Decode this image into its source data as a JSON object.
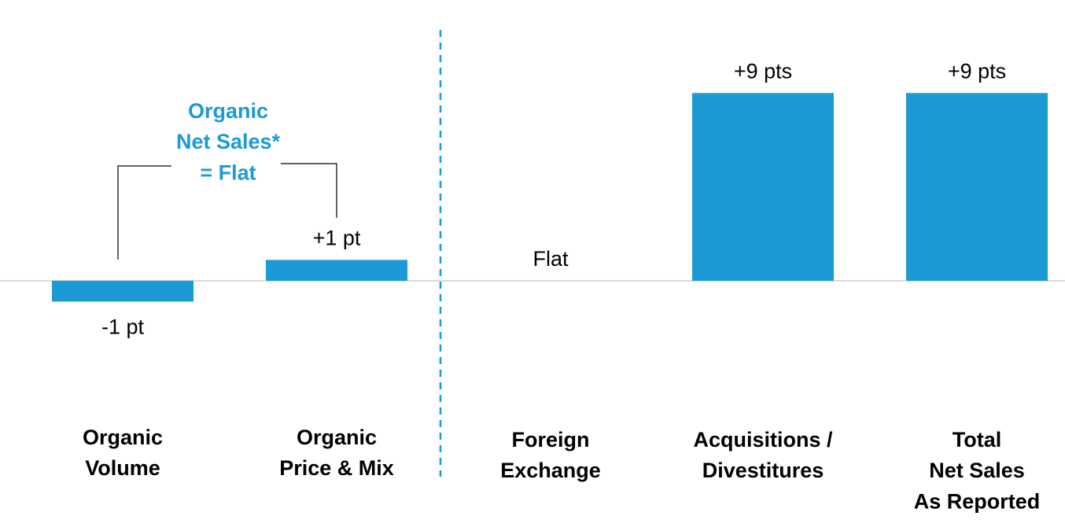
{
  "chart_data": {
    "type": "bar",
    "categories": [
      "Organic\nVolume",
      "Organic\nPrice & Mix",
      "Foreign\nExchange",
      "Acquisitions /\nDivestitures",
      "Total\nNet Sales\nAs Reported"
    ],
    "values": [
      -1,
      1,
      0,
      9,
      9
    ],
    "value_labels": [
      "-1 pt",
      "+1 pt",
      "Flat",
      "+9 pts",
      "+9 pts"
    ],
    "color": "#1b9ad6",
    "ylim": [
      -2,
      9.5
    ],
    "annotation": "Organic\nNet Sales*\n= Flat"
  }
}
